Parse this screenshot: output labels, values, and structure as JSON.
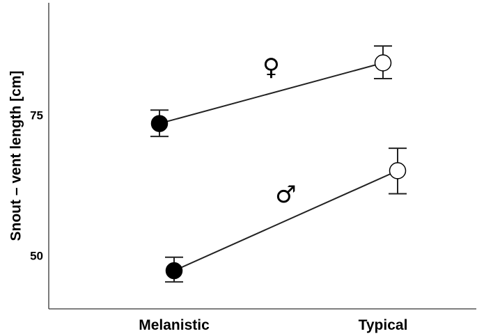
{
  "chart_data": {
    "type": "line",
    "categories": [
      "Melanistic",
      "Typical"
    ],
    "ylabel": "Snout – vent length [cm]",
    "xlabel": "",
    "ylim": [
      40.5,
      95
    ],
    "yticks": [
      {
        "value": 50,
        "label": "50"
      },
      {
        "value": 75,
        "label": "75"
      }
    ],
    "grid": false,
    "series": [
      {
        "name": "♀",
        "x_offset": [
          -0.07,
          0.0
        ],
        "values": [
          73.5,
          84.3
        ],
        "err_low": [
          71.2,
          81.5
        ],
        "err_high": [
          75.9,
          87.3
        ],
        "marker_fill": [
          "#000000",
          "#ffffff"
        ]
      },
      {
        "name": "♂",
        "x_offset": [
          0.0,
          0.07
        ],
        "values": [
          47.3,
          65.1
        ],
        "err_low": [
          45.3,
          61.0
        ],
        "err_high": [
          49.7,
          69.1
        ],
        "marker_fill": [
          "#000000",
          "#ffffff"
        ]
      }
    ]
  }
}
